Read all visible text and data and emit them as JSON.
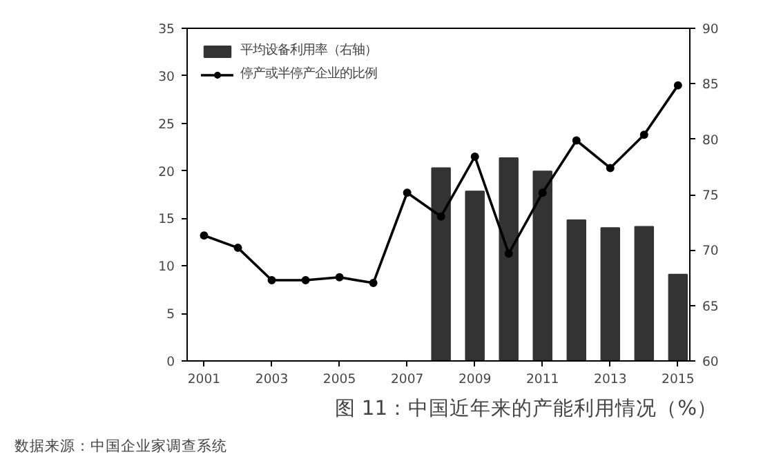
{
  "chart_data": {
    "type": "line",
    "title": "图 11：中国近年来的产能利用情况（%）",
    "annotations": [
      "数据来源：中国企业家调查系统"
    ],
    "x": [
      2001,
      2002,
      2003,
      2004,
      2005,
      2006,
      2007,
      2008,
      2009,
      2010,
      2011,
      2012,
      2013,
      2014,
      2015
    ],
    "series": [
      {
        "name": "平均设备利用率（右轴）",
        "type": "bar",
        "axis": "y2",
        "color": "#333333",
        "x": [
          2008,
          2009,
          2010,
          2011,
          2012,
          2013,
          2014,
          2015
        ],
        "values": [
          77.4,
          75.3,
          78.3,
          77.1,
          72.7,
          72.0,
          72.1,
          67.8
        ]
      },
      {
        "name": "停产或半停产企业的比例",
        "color": "#000000",
        "values": [
          13.2,
          11.9,
          8.5,
          8.5,
          8.8,
          8.2,
          17.7,
          15.2,
          21.5,
          11.3,
          17.7,
          23.2,
          20.3,
          23.8,
          29.0
        ]
      }
    ],
    "xlim": [
      2000.5,
      2015.35
    ],
    "xticks": [
      2001,
      2003,
      2005,
      2007,
      2009,
      2011,
      2013,
      2015
    ],
    "ylim": [
      0,
      35
    ],
    "yticks": [
      0,
      5,
      10,
      15,
      20,
      25,
      30,
      35
    ],
    "y2lim": [
      60,
      90
    ],
    "y2ticks": [
      60,
      65,
      70,
      75,
      80,
      85,
      90
    ],
    "grid": false,
    "legend": "top left",
    "marker": "circle",
    "line_style": "solid"
  }
}
